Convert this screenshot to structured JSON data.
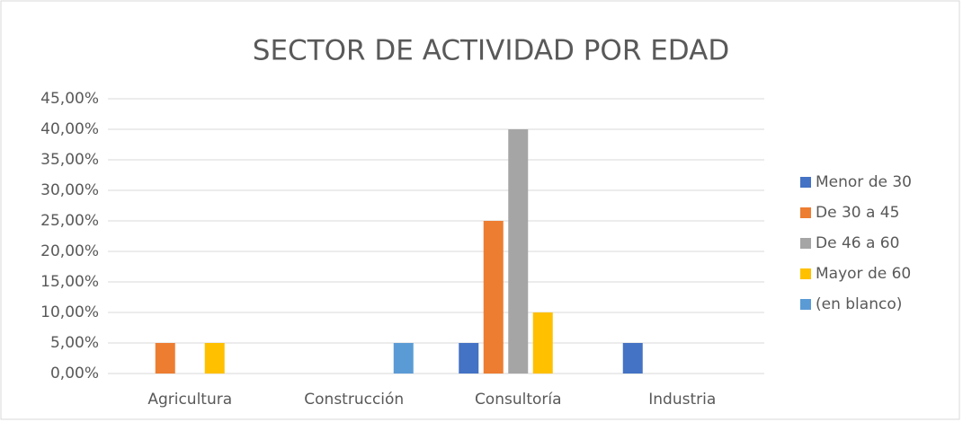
{
  "chart_data": {
    "type": "bar",
    "title": "SECTOR DE ACTIVIDAD POR EDAD",
    "categories": [
      "Agricultura",
      "Construcción",
      "Consultoría",
      "Industria"
    ],
    "series": [
      {
        "name": "Menor de 30",
        "color": "#4472c4",
        "values": [
          null,
          null,
          5,
          5
        ]
      },
      {
        "name": "De 30 a 45",
        "color": "#ed7d31",
        "values": [
          5,
          null,
          25,
          null
        ]
      },
      {
        "name": "De 46 a 60",
        "color": "#a5a5a5",
        "values": [
          null,
          null,
          40,
          null
        ]
      },
      {
        "name": "Mayor de 60",
        "color": "#ffc000",
        "values": [
          5,
          null,
          10,
          null
        ]
      },
      {
        "name": "(en blanco)",
        "color": "#5b9bd5",
        "values": [
          null,
          5,
          null,
          null
        ]
      }
    ],
    "ylim": [
      0,
      45
    ],
    "yticks": [
      {
        "value": 0,
        "label": "0,00%"
      },
      {
        "value": 5,
        "label": "5,00%"
      },
      {
        "value": 10,
        "label": "10,00%"
      },
      {
        "value": 15,
        "label": "15,00%"
      },
      {
        "value": 20,
        "label": "20,00%"
      },
      {
        "value": 25,
        "label": "25,00%"
      },
      {
        "value": 30,
        "label": "30,00%"
      },
      {
        "value": 35,
        "label": "35,00%"
      },
      {
        "value": 40,
        "label": "40,00%"
      },
      {
        "value": 45,
        "label": "45,00%"
      }
    ],
    "grid": true,
    "legend": "right"
  }
}
